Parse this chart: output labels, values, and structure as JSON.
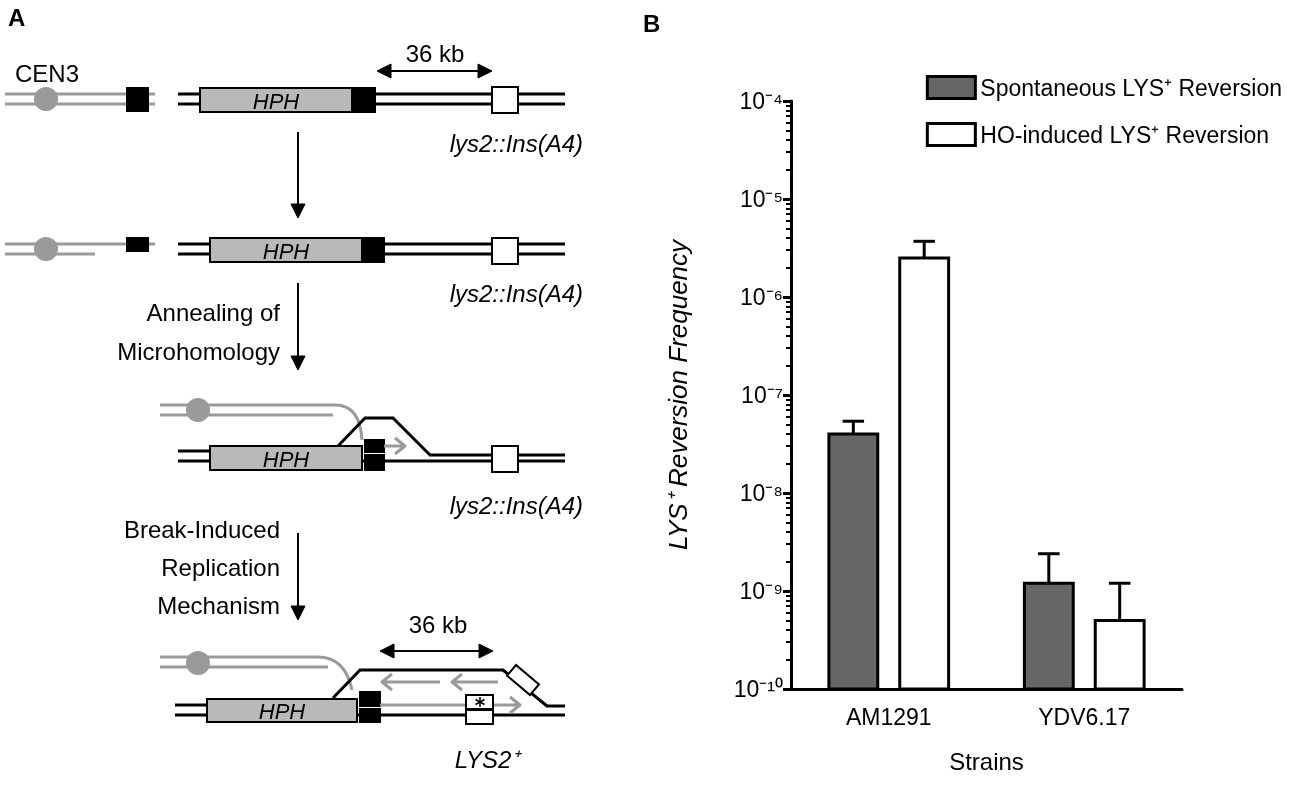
{
  "chart_data": [
    {
      "type": "other",
      "title": "A",
      "annotations": [
        "CEN3",
        "36 kb",
        "HPH",
        "lys2::Ins(A4)",
        "HPH",
        "lys2::Ins(A4)",
        "Annealing of",
        "Microhomology",
        "HPH",
        "lys2::Ins(A4)",
        "Break-Induced",
        "Replication",
        "Mechanism",
        "36 kb",
        "HPH",
        "LYS2⁺"
      ]
    },
    {
      "type": "bar",
      "title": "B",
      "xlabel": "Strains",
      "ylabel": "LYS⁺ Reversion Frequency",
      "categories": [
        "AM1291",
        "YDV6.17"
      ],
      "series": [
        {
          "name": "Spontaneous LYS⁺ Reversion",
          "color": "#666666",
          "values": [
            4e-08,
            1.2e-09
          ],
          "errors": [
            [
              4e-08,
              5.4e-08
            ],
            [
              1.2e-09,
              2.4e-09
            ]
          ]
        },
        {
          "name": "HO-induced LYS⁺ Reversion",
          "color": "#ffffff",
          "values": [
            2.5e-06,
            5e-10
          ],
          "errors": [
            [
              2.5e-06,
              3.7e-06
            ],
            [
              5e-10,
              1.2e-09
            ]
          ]
        }
      ],
      "log": "y",
      "ylim": [
        1e-10,
        0.0001
      ],
      "yticks": [
        {
          "value": 1e-10,
          "label": "10⁻¹⁰"
        },
        {
          "value": 1e-09,
          "label": "10⁻⁹"
        },
        {
          "value": 1e-08,
          "label": "10⁻⁸"
        },
        {
          "value": 1e-07,
          "label": "10⁻⁷"
        },
        {
          "value": 1e-06,
          "label": "10⁻⁶"
        },
        {
          "value": 1e-05,
          "label": "10⁻⁵"
        },
        {
          "value": 0.0001,
          "label": "10⁻⁴"
        }
      ],
      "grid": false,
      "legend": "top right"
    }
  ]
}
